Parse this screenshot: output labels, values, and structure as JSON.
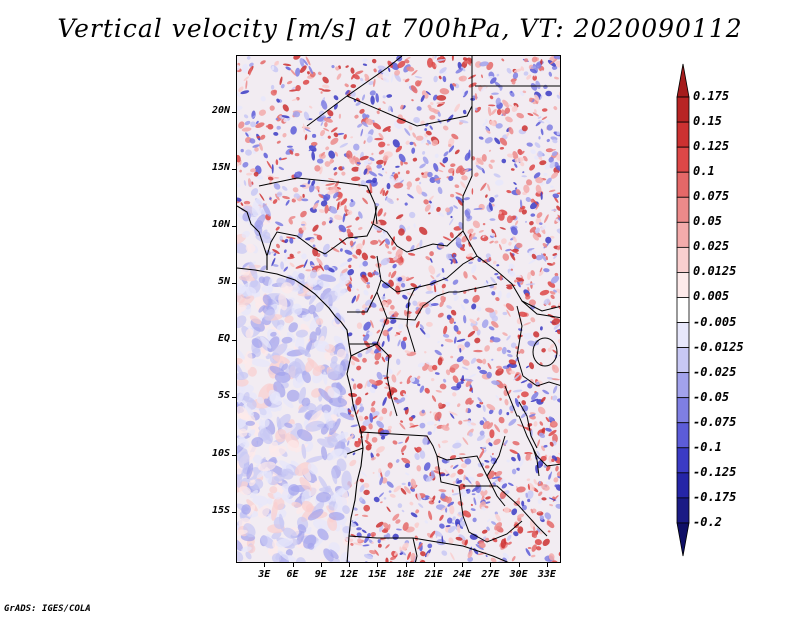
{
  "title": "Vertical velocity [m/s] at 700hPa, VT: 2020090112",
  "credit": "GrADS: IGES/COLA",
  "map": {
    "lat_labels": [
      "20N",
      "15N",
      "10N",
      "5N",
      "EQ",
      "5S",
      "10S",
      "15S"
    ],
    "lat_values": [
      20,
      15,
      10,
      5,
      0,
      -5,
      -10,
      -15
    ],
    "lon_labels": [
      "3E",
      "6E",
      "9E",
      "12E",
      "15E",
      "18E",
      "21E",
      "24E",
      "27E",
      "30E",
      "33E"
    ],
    "lon_values": [
      3,
      6,
      9,
      12,
      15,
      18,
      21,
      24,
      27,
      30,
      33
    ],
    "lon_range": [
      0,
      34.5
    ],
    "lat_range": [
      -19.5,
      25
    ]
  },
  "colorbar": {
    "labels": [
      "0.175",
      "0.15",
      "0.125",
      "0.1",
      "0.075",
      "0.05",
      "0.025",
      "0.0125",
      "0.005",
      "-0.005",
      "-0.0125",
      "-0.025",
      "-0.05",
      "-0.075",
      "-0.1",
      "-0.125",
      "-0.175",
      "-0.2"
    ],
    "colors": [
      "#a51c1c",
      "#b82424",
      "#cc3131",
      "#dd4747",
      "#e46868",
      "#ec8a8a",
      "#f3abab",
      "#f9cfcf",
      "#fdeaea",
      "#ffffff",
      "#e7e7fb",
      "#c8c8f4",
      "#a2a2ec",
      "#7f7fe3",
      "#5c5cd8",
      "#3b3bc4",
      "#2525a7",
      "#1a1a85",
      "#0f0f66"
    ]
  }
}
